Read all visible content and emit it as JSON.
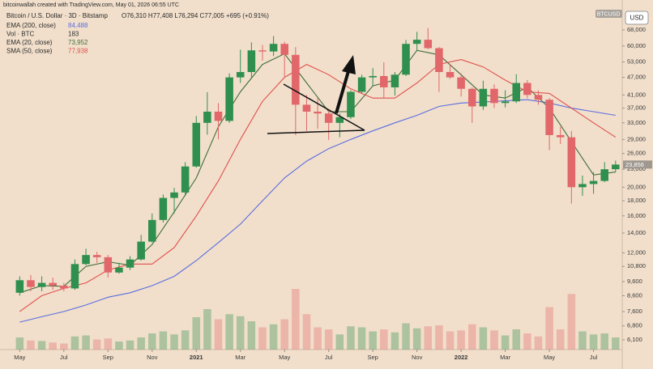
{
  "chart_data": {
    "type": "candlestick",
    "credit": "bitcoinwallah created with TradingView.com, May 01, 2026 06:55 UTC",
    "title": "Bitcoin / U.S. Dollar · 3D · Bitstamp",
    "ohlc_label": "O76,310 H77,408 L76,294 C77,005 +695 (+0.91%)",
    "symbol": "BTCUSD",
    "currency": "USD",
    "last_label": "23,856",
    "log_scale": true,
    "up_color": "#2f8f4e",
    "down_color": "#e2676a",
    "xlim": [
      -0.6,
      27.3
    ],
    "xticks": [
      {
        "value": 0,
        "label": "May"
      },
      {
        "value": 2,
        "label": "Jul"
      },
      {
        "value": 4,
        "label": "Sep"
      },
      {
        "value": 6,
        "label": "Nov"
      },
      {
        "value": 8,
        "label": "2021"
      },
      {
        "value": 10,
        "label": "Mar"
      },
      {
        "value": 12,
        "label": "May"
      },
      {
        "value": 14,
        "label": "Jul"
      },
      {
        "value": 16,
        "label": "Sep"
      },
      {
        "value": 18,
        "label": "Nov"
      },
      {
        "value": 20,
        "label": "2022"
      },
      {
        "value": 22,
        "label": "Mar"
      },
      {
        "value": 24,
        "label": "May"
      },
      {
        "value": 26,
        "label": "Jul"
      }
    ],
    "ylim": [
      5655,
      81600
    ],
    "yticks": [
      {
        "value": 68000,
        "label": "68,000"
      },
      {
        "value": 60000,
        "label": "60,000"
      },
      {
        "value": 53000,
        "label": "53,000"
      },
      {
        "value": 47000,
        "label": "47,000"
      },
      {
        "value": 41000,
        "label": "41,000"
      },
      {
        "value": 37000,
        "label": "37,000"
      },
      {
        "value": 33000,
        "label": "33,000"
      },
      {
        "value": 29000,
        "label": "29,000"
      },
      {
        "value": 26000,
        "label": "26,000"
      },
      {
        "value": 23000,
        "label": "23,000"
      },
      {
        "value": 20000,
        "label": "20,000"
      },
      {
        "value": 18000,
        "label": "18,000"
      },
      {
        "value": 16000,
        "label": "16,000"
      },
      {
        "value": 14000,
        "label": "14,000"
      },
      {
        "value": 12000,
        "label": "12,000"
      },
      {
        "value": 10800,
        "label": "10,800"
      },
      {
        "value": 9600,
        "label": "9,600"
      },
      {
        "value": 8600,
        "label": "8,600"
      },
      {
        "value": 7600,
        "label": "7,600"
      },
      {
        "value": 6800,
        "label": "6,800"
      },
      {
        "value": 6100,
        "label": "6,100"
      }
    ],
    "candles": {
      "x": [
        0,
        0.5,
        1,
        1.5,
        2,
        2.5,
        3,
        3.5,
        4,
        4.5,
        5,
        5.5,
        6,
        6.5,
        7,
        7.5,
        8,
        8.5,
        9,
        9.5,
        10,
        10.5,
        11,
        11.5,
        12,
        12.5,
        13,
        13.5,
        14,
        14.5,
        15,
        15.5,
        16,
        16.5,
        17,
        17.5,
        18,
        18.5,
        19,
        19.5,
        20,
        20.5,
        21,
        21.5,
        22,
        22.5,
        23,
        23.5,
        24,
        24.5,
        25,
        25.5,
        26,
        26.5,
        27
      ],
      "open": [
        8800,
        9700,
        9200,
        9500,
        9300,
        9100,
        11000,
        11800,
        11600,
        10300,
        10700,
        11400,
        13100,
        15500,
        18400,
        19200,
        23500,
        33000,
        36000,
        33500,
        47000,
        49000,
        58000,
        57500,
        61000,
        56000,
        38000,
        36000,
        35500,
        33000,
        34500,
        42000,
        47000,
        47500,
        43500,
        48000,
        61000,
        63000,
        59000,
        49000,
        47000,
        43000,
        37500,
        43000,
        38500,
        39000,
        45000,
        41000,
        39500,
        30000,
        29500,
        20000,
        20500,
        21000,
        23000
      ],
      "high": [
        10000,
        10100,
        10000,
        9900,
        9500,
        11400,
        12400,
        12100,
        11800,
        11100,
        11700,
        13800,
        16300,
        18900,
        19900,
        24300,
        34800,
        41900,
        38500,
        48500,
        58300,
        61700,
        60500,
        64800,
        62000,
        59500,
        41000,
        40000,
        36500,
        35500,
        42500,
        48000,
        50500,
        52900,
        49000,
        62900,
        67000,
        69000,
        59500,
        52000,
        48500,
        43500,
        45800,
        44500,
        42500,
        48200,
        46000,
        42500,
        40000,
        32000,
        31000,
        21900,
        22500,
        24300,
        24600
      ],
      "low": [
        8600,
        8900,
        8900,
        9000,
        8900,
        9000,
        10900,
        11100,
        9900,
        10200,
        10500,
        11300,
        13000,
        15200,
        16300,
        18700,
        23300,
        30100,
        29000,
        33000,
        45000,
        47000,
        53500,
        55500,
        47000,
        30000,
        31000,
        31500,
        28900,
        29500,
        34000,
        41500,
        44000,
        40000,
        40800,
        47500,
        58000,
        58500,
        42000,
        46500,
        40500,
        33000,
        36500,
        37000,
        37200,
        38500,
        40000,
        38000,
        26700,
        28000,
        17600,
        18700,
        19000,
        20800,
        22500
      ],
      "close": [
        9700,
        9200,
        9500,
        9300,
        9100,
        11000,
        11800,
        11600,
        10300,
        10700,
        11400,
        13100,
        15500,
        18400,
        19200,
        23500,
        33000,
        36000,
        33500,
        47000,
        49000,
        58000,
        57500,
        61000,
        56000,
        38000,
        36000,
        35500,
        33000,
        34500,
        42000,
        47000,
        47500,
        43500,
        48000,
        61000,
        63000,
        59000,
        49000,
        47000,
        43000,
        37500,
        43000,
        38500,
        39000,
        45000,
        41000,
        39500,
        30000,
        29500,
        20000,
        20500,
        21000,
        23000,
        23856
      ]
    },
    "volume": {
      "name": "Vol · BTC",
      "legend_value": "183",
      "vlim": [
        0,
        800000
      ],
      "values": [
        120000,
        90000,
        85000,
        70000,
        60000,
        130000,
        140000,
        100000,
        110000,
        80000,
        90000,
        120000,
        160000,
        180000,
        150000,
        190000,
        320000,
        400000,
        300000,
        350000,
        330000,
        280000,
        220000,
        250000,
        300000,
        600000,
        350000,
        220000,
        200000,
        150000,
        230000,
        220000,
        180000,
        200000,
        170000,
        260000,
        210000,
        230000,
        240000,
        180000,
        190000,
        250000,
        220000,
        190000,
        140000,
        200000,
        160000,
        130000,
        420000,
        200000,
        550000,
        180000,
        150000,
        160000,
        120000
      ]
    },
    "line_x": [
      0,
      1,
      2,
      3,
      4,
      5,
      6,
      7,
      8,
      9,
      10,
      11,
      12,
      13,
      14,
      15,
      16,
      17,
      18,
      19,
      20,
      21,
      22,
      23,
      24,
      25,
      26,
      27
    ],
    "series": [
      {
        "name": "EMA (200, close)",
        "legend_value": "84,488",
        "color": "#5a6de0",
        "values": [
          7000,
          7300,
          7600,
          8000,
          8500,
          8800,
          9300,
          10000,
          11300,
          13000,
          15000,
          18000,
          21500,
          24500,
          27000,
          29000,
          31000,
          33000,
          35000,
          37500,
          38500,
          38800,
          39200,
          39500,
          38500,
          37000,
          36000,
          35000
        ]
      },
      {
        "name": "EMA (20, close)",
        "legend_value": "73,952",
        "color": "#3f6e3a",
        "values": [
          8800,
          9300,
          9250,
          10800,
          11200,
          10900,
          12800,
          16500,
          21500,
          32000,
          42000,
          52000,
          56500,
          45000,
          36000,
          36000,
          44000,
          46000,
          58000,
          56000,
          48000,
          41000,
          40000,
          43500,
          37000,
          28500,
          22000,
          22500
        ]
      },
      {
        "name": "SMA (50, close)",
        "legend_value": "77,938",
        "color": "#e0504d",
        "values": [
          7600,
          8600,
          9100,
          9500,
          10500,
          11000,
          11000,
          12500,
          16000,
          21000,
          29000,
          39000,
          47000,
          52000,
          48000,
          43000,
          40000,
          40000,
          45000,
          52000,
          54000,
          51000,
          46000,
          42000,
          41500,
          37000,
          33000,
          29500
        ]
      }
    ]
  }
}
